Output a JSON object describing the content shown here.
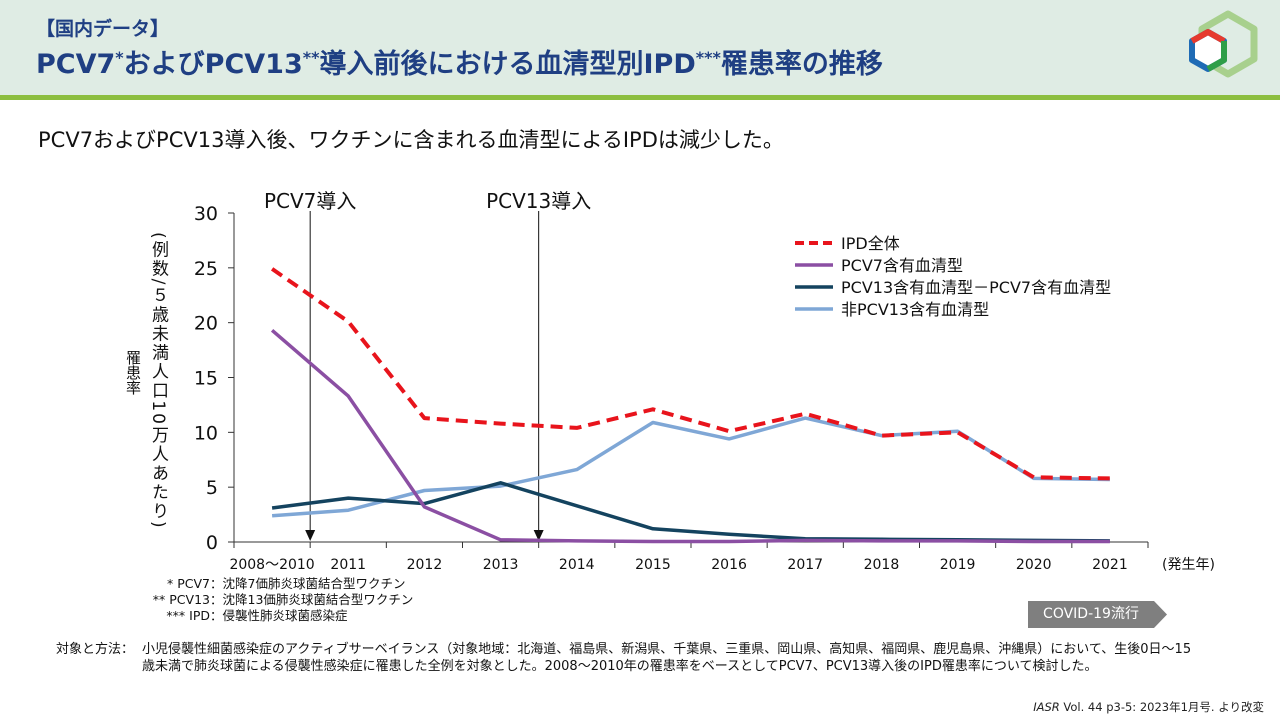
{
  "header": {
    "tag": "【国内データ】",
    "title_parts": [
      "PCV7",
      "*",
      "およびPCV13",
      "**",
      "導入前後における血清型別IPD",
      "***",
      "罹患率の推移"
    ]
  },
  "subtitle": "PCV7およびPCV13導入後、ワクチンに含まれる血清型によるIPDは減少した。",
  "chart_data": {
    "type": "line",
    "categories": [
      "2008～2010",
      "2011",
      "2012",
      "2013",
      "2014",
      "2015",
      "2016",
      "2017",
      "2018",
      "2019",
      "2020",
      "2021"
    ],
    "x_unit_label": "(発生年)",
    "ylabel_line1": "(例数/５歳未満人口10万人あたり)",
    "ylabel_line2": "罹患率",
    "ylim": [
      0,
      30
    ],
    "yticks": [
      0,
      5,
      10,
      15,
      20,
      25,
      30
    ],
    "grid": false,
    "legend_position": "top-right",
    "series": [
      {
        "name": "IPD全体",
        "color": "#e8141c",
        "dashed": true,
        "values": [
          24.9,
          20.1,
          11.3,
          10.8,
          10.4,
          12.1,
          10.1,
          11.7,
          9.7,
          10.0,
          5.9,
          5.8
        ]
      },
      {
        "name": "PCV7含有血清型",
        "color": "#8b4fa3",
        "dashed": false,
        "values": [
          19.3,
          13.3,
          3.2,
          0.2,
          0.1,
          0.05,
          0.05,
          0.15,
          0.1,
          0.1,
          0.05,
          0.05
        ]
      },
      {
        "name": "PCV13含有血清型－PCV7含有血清型",
        "color": "#14435f",
        "dashed": false,
        "values": [
          3.1,
          4.0,
          3.5,
          5.4,
          3.3,
          1.2,
          0.7,
          0.3,
          0.25,
          0.2,
          0.15,
          0.1
        ]
      },
      {
        "name": "非PCV13含有血清型",
        "color": "#7fa7d6",
        "dashed": false,
        "values": [
          2.4,
          2.9,
          4.7,
          5.1,
          6.6,
          10.9,
          9.4,
          11.3,
          9.7,
          10.1,
          5.8,
          5.7
        ]
      }
    ],
    "annotations": [
      {
        "label": "PCV7導入",
        "at_category_index": 0.5
      },
      {
        "label": "PCV13導入",
        "at_category_index": 3.5
      }
    ]
  },
  "footnotes": [
    {
      "key": "* PCV7",
      "text": "：沈降7価肺炎球菌結合型ワクチン"
    },
    {
      "key": "** PCV13",
      "text": "：沈降13価肺炎球菌結合型ワクチン"
    },
    {
      "key": "*** IPD",
      "text": "：侵襲性肺炎球菌感染症"
    }
  ],
  "covid_label": "COVID-19流行",
  "method": {
    "key": "対象と方法：",
    "text": "小児侵襲性細菌感染症のアクティブサーベイランス（対象地域：北海道、福島県、新潟県、千葉県、三重県、岡山県、高知県、福岡県、鹿児島県、沖縄県）において、生後0日～15歳未満で肺炎球菌による侵襲性感染症に罹患した全例を対象とした。2008～2010年の罹患率をベースとしてPCV7、PCV13導入後のIPD罹患率について検討した。"
  },
  "source": {
    "journal": "IASR",
    "rest": " Vol. 44 p3-5: 2023年1月号. より改変"
  },
  "colors": {
    "title": "#1f3f83",
    "header_bg": "#dfece4",
    "header_bar": "#8cbe3f",
    "covid_bg": "#7f7f7f"
  }
}
